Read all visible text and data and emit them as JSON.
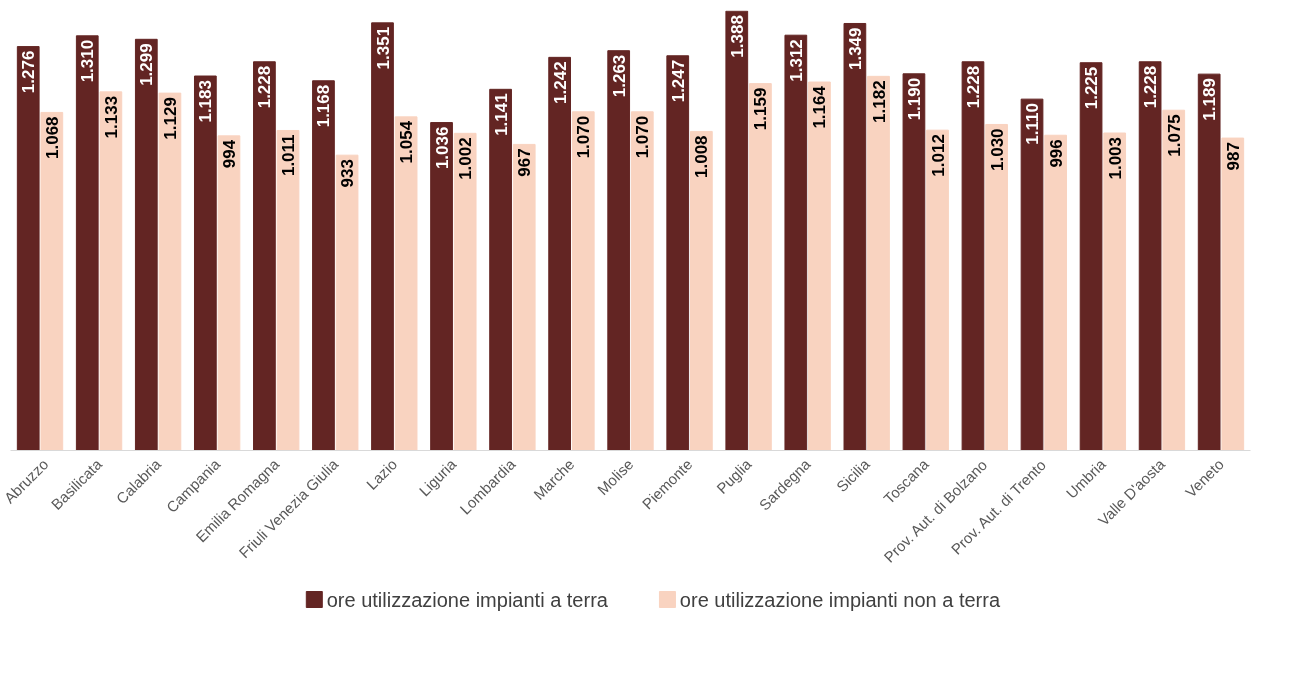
{
  "chart_data": {
    "type": "bar",
    "categories": [
      "Abruzzo",
      "Basilicata",
      "Calabria",
      "Campania",
      "Emilia Romagna",
      "Friuli Venezia Giulia",
      "Lazio",
      "Liguria",
      "Lombardia",
      "Marche",
      "Molise",
      "Piemonte",
      "Puglia",
      "Sardegna",
      "Sicilia",
      "Toscana",
      "Prov. Aut. di Bolzano",
      "Prov. Aut. di Trento",
      "Umbria",
      "Valle D'aosta",
      "Veneto"
    ],
    "series": [
      {
        "name": "ore utilizzazione impianti a terra",
        "color": "#632523",
        "values": [
          1276,
          1310,
          1299,
          1183,
          1228,
          1168,
          1351,
          1036,
          1141,
          1242,
          1263,
          1247,
          1388,
          1312,
          1349,
          1190,
          1228,
          1110,
          1225,
          1228,
          1189
        ],
        "value_labels": [
          "1.276",
          "1.310",
          "1.299",
          "1.183",
          "1.228",
          "1.168",
          "1.351",
          "1.036",
          "1.141",
          "1.242",
          "1.263",
          "1.247",
          "1.388",
          "1.312",
          "1.349",
          "1.190",
          "1.228",
          "1.110",
          "1.225",
          "1.228",
          "1.189"
        ]
      },
      {
        "name": "ore utilizzazione impianti non a terra",
        "color": "#f9d3c0",
        "values": [
          1068,
          1133,
          1129,
          994,
          1011,
          933,
          1054,
          1002,
          967,
          1070,
          1070,
          1008,
          1159,
          1164,
          1182,
          1012,
          1030,
          996,
          1003,
          1075,
          987
        ],
        "value_labels": [
          "1.068",
          "1.133",
          "1.129",
          "994",
          "1.011",
          "933",
          "1.054",
          "1.002",
          "967",
          "1.070",
          "1.070",
          "1.008",
          "1.159",
          "1.164",
          "1.182",
          "1.012",
          "1.030",
          "996",
          "1.003",
          "1.075",
          "987"
        ]
      }
    ],
    "ylim": [
      0,
      1390
    ],
    "legend": "bottom",
    "grid": false
  }
}
